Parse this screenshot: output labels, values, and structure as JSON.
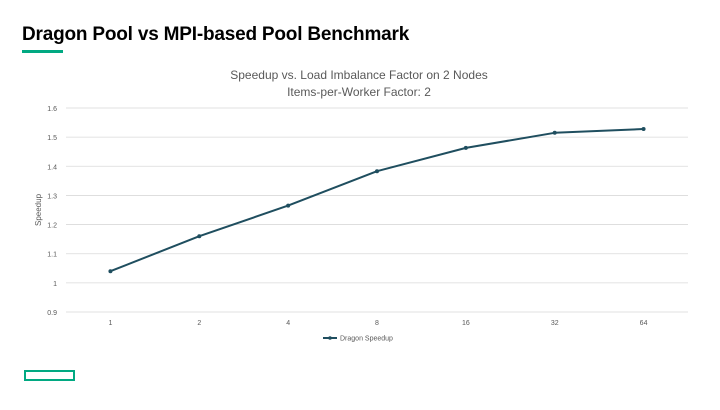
{
  "slide": {
    "title": "Dragon Pool vs MPI-based Pool Benchmark",
    "accent_color": "#01a982"
  },
  "chart_data": {
    "type": "line",
    "title_line1": "Speedup vs. Load Imbalance Factor on 2 Nodes",
    "title_line2": "Items-per-Worker Factor: 2",
    "xlabel": "",
    "ylabel": "Speedup",
    "categories": [
      "1",
      "2",
      "4",
      "8",
      "16",
      "32",
      "64"
    ],
    "series": [
      {
        "name": "Dragon Speedup",
        "color": "#1f4e5f",
        "values": [
          1.04,
          1.16,
          1.265,
          1.383,
          1.463,
          1.515,
          1.528
        ]
      }
    ],
    "ylim": [
      0.9,
      1.6
    ],
    "yticks": [
      "0.9",
      "1",
      "1.1",
      "1.2",
      "1.3",
      "1.4",
      "1.5",
      "1.6"
    ],
    "grid": true,
    "legend_position": "bottom"
  }
}
